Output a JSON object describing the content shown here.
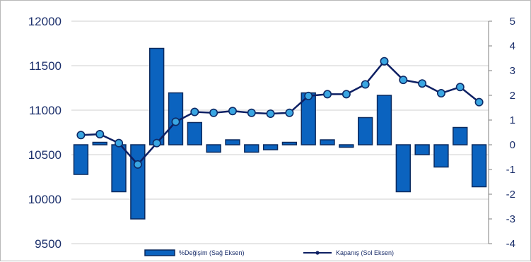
{
  "chart_data": {
    "type": "bar+line",
    "colors": {
      "bar_fill": "#0b63bf",
      "bar_stroke": "#0b2a5e",
      "line": "#0d1f63",
      "marker_fill": "#3aa6e2",
      "tick_text": "#1b2f6b",
      "grid": "#cfcfcf"
    },
    "left_axis": {
      "ylim": [
        9500,
        12000
      ],
      "ticks": [
        "9500",
        "10000",
        "10500",
        "11000",
        "11500",
        "12000"
      ]
    },
    "right_axis": {
      "ylim": [
        -4,
        5
      ],
      "ticks": [
        "-4",
        "-3",
        "-2",
        "-1",
        "0",
        "1",
        "2",
        "3",
        "4",
        "5"
      ]
    },
    "grid": true,
    "legend_position": "bottom",
    "series": [
      {
        "name": "%Değişim (Sağ Eksen)",
        "kind": "bar",
        "axis": "right",
        "values": [
          -1.2,
          0.1,
          -1.9,
          -3.0,
          3.9,
          2.1,
          0.9,
          -0.3,
          0.2,
          -0.3,
          -0.2,
          0.1,
          2.1,
          0.2,
          -0.1,
          1.1,
          2.0,
          -1.9,
          -0.4,
          -0.9,
          0.7,
          -1.7
        ]
      },
      {
        "name": "Kapanış (Sol Eksen)",
        "kind": "line",
        "axis": "left",
        "values": [
          10720,
          10730,
          10630,
          10390,
          10630,
          10870,
          10980,
          10970,
          10990,
          10970,
          10960,
          10970,
          11160,
          11180,
          11180,
          11290,
          11550,
          11340,
          11300,
          11190,
          11260,
          11090
        ]
      }
    ]
  }
}
